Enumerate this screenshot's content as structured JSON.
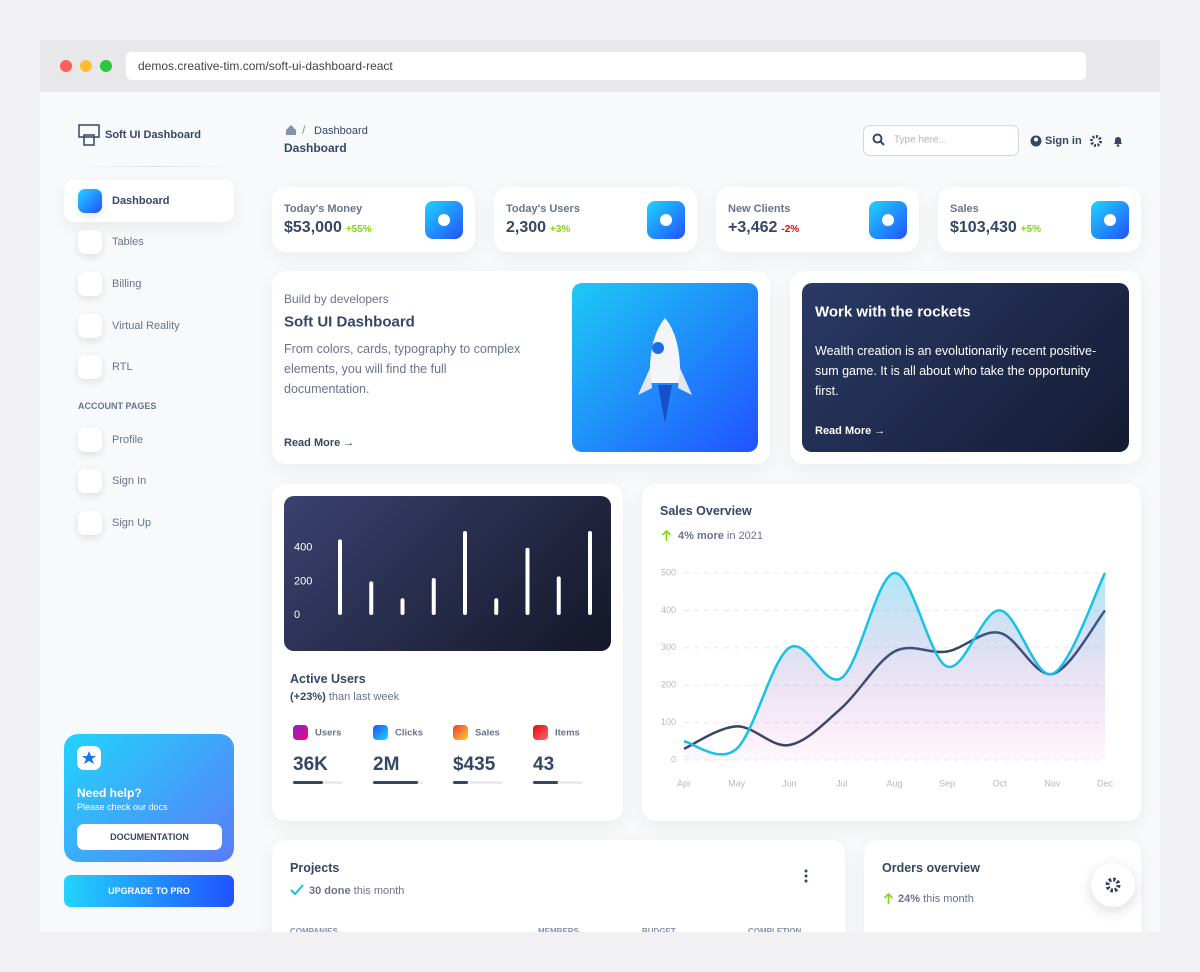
{
  "browser": {
    "url": "demos.creative-tim.com/soft-ui-dashboard-react"
  },
  "sidebar": {
    "brand": "Soft UI Dashboard",
    "nav": [
      "Dashboard",
      "Tables",
      "Billing",
      "Virtual Reality",
      "RTL"
    ],
    "section": "ACCOUNT PAGES",
    "account": [
      "Profile",
      "Sign In",
      "Sign Up"
    ],
    "help": {
      "title": "Need help?",
      "subtitle": "Please check our docs",
      "button": "DOCUMENTATION"
    },
    "upgrade": "UPGRADE TO PRO"
  },
  "header": {
    "breadcrumb": "Dashboard",
    "title": "Dashboard",
    "search_placeholder": "Type here...",
    "sign_in": "Sign in"
  },
  "stats": [
    {
      "label": "Today's Money",
      "value": "$53,000",
      "change": "+55%"
    },
    {
      "label": "Today's Users",
      "value": "2,300",
      "change": "+3%"
    },
    {
      "label": "New Clients",
      "value": "+3,462",
      "change": "-2%"
    },
    {
      "label": "Sales",
      "value": "$103,430",
      "change": "+5%"
    }
  ],
  "intro": {
    "eyebrow": "Build by developers",
    "title": "Soft UI Dashboard",
    "text": "From colors, cards, typography to complex elements, you will find the full documentation.",
    "link": "Read More →"
  },
  "rockets": {
    "title": "Work with the rockets",
    "text": "Wealth creation is an evolutionarily recent positive-sum game. It is all about who take the opportunity first.",
    "link": "Read More →"
  },
  "active_users": {
    "chart_data": {
      "type": "bar",
      "values": [
        450,
        200,
        100,
        220,
        500,
        100,
        400,
        230,
        500
      ],
      "ylim": [
        0,
        500
      ],
      "yticks": [
        0,
        200,
        400
      ],
      "color": "#ffffff"
    },
    "title": "Active Users",
    "change": "(+23%)",
    "subtitle": "than last week",
    "items": [
      {
        "label": "Users",
        "value": "36K",
        "progress": 60
      },
      {
        "label": "Clicks",
        "value": "2M",
        "progress": 90
      },
      {
        "label": "Sales",
        "value": "$435",
        "progress": 30
      },
      {
        "label": "Items",
        "value": "43",
        "progress": 50
      }
    ]
  },
  "sales_overview": {
    "title": "Sales Overview",
    "change": "4% more",
    "subtitle": "in 2021",
    "chart_data": {
      "type": "line",
      "categories": [
        "Apr",
        "May",
        "Jun",
        "Jul",
        "Aug",
        "Sep",
        "Oct",
        "Nov",
        "Dec"
      ],
      "ylim": [
        0,
        500
      ],
      "yticks": [
        0,
        100,
        200,
        300,
        400,
        500
      ],
      "grid": true,
      "series": [
        {
          "color": "#17c1e8",
          "values": [
            50,
            30,
            300,
            220,
            500,
            250,
            400,
            230,
            500
          ]
        },
        {
          "color": "#344767",
          "values": [
            30,
            90,
            40,
            140,
            290,
            290,
            340,
            230,
            400
          ]
        }
      ]
    }
  },
  "projects": {
    "title": "Projects",
    "done": "30 done",
    "subtitle": "this month",
    "columns": [
      "COMPANIES",
      "MEMBERS",
      "BUDGET",
      "COMPLETION"
    ]
  },
  "orders": {
    "title": "Orders overview",
    "change": "24%",
    "subtitle": "this month"
  }
}
